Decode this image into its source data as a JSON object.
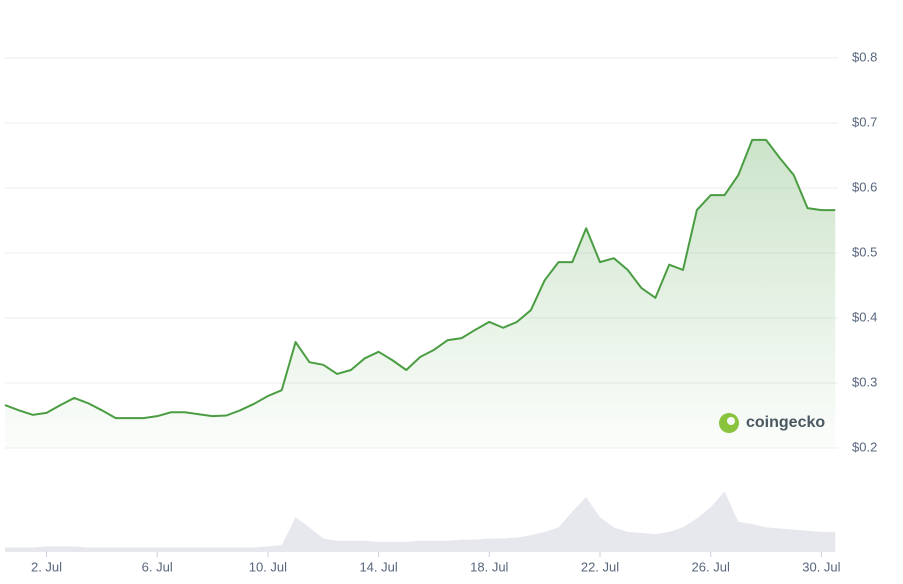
{
  "chart_data": {
    "type": "line",
    "watermark": "coingecko",
    "x": [
      0.5,
      1,
      1.5,
      2,
      2.5,
      3,
      3.5,
      4,
      4.5,
      5,
      5.5,
      6,
      6.5,
      7,
      7.5,
      8,
      8.5,
      9,
      9.5,
      10,
      10.5,
      11,
      11.5,
      12,
      12.5,
      13,
      13.5,
      14,
      14.5,
      15,
      15.5,
      16,
      16.5,
      17,
      17.5,
      18,
      18.5,
      19,
      19.5,
      20,
      20.5,
      21,
      21.5,
      22,
      22.5,
      23,
      23.5,
      24,
      24.5,
      25,
      25.5,
      26,
      26.5,
      27,
      27.5,
      28,
      28.5,
      29,
      29.5,
      30,
      30.5
    ],
    "values": [
      0.266,
      0.258,
      0.251,
      0.254,
      0.266,
      0.277,
      0.269,
      0.258,
      0.246,
      0.246,
      0.246,
      0.249,
      0.255,
      0.255,
      0.252,
      0.249,
      0.25,
      0.258,
      0.268,
      0.28,
      0.289,
      0.363,
      0.332,
      0.328,
      0.314,
      0.32,
      0.338,
      0.348,
      0.335,
      0.32,
      0.34,
      0.351,
      0.366,
      0.369,
      0.382,
      0.394,
      0.385,
      0.394,
      0.412,
      0.458,
      0.486,
      0.486,
      0.538,
      0.486,
      0.492,
      0.474,
      0.446,
      0.431,
      0.482,
      0.474,
      0.566,
      0.589,
      0.589,
      0.62,
      0.674,
      0.674,
      0.646,
      0.62,
      0.569,
      0.566,
      0.566
    ],
    "color": "#4a9d42",
    "volume_values": [
      0.04,
      0.04,
      0.04,
      0.05,
      0.05,
      0.05,
      0.04,
      0.04,
      0.04,
      0.04,
      0.04,
      0.04,
      0.04,
      0.04,
      0.04,
      0.04,
      0.04,
      0.04,
      0.04,
      0.05,
      0.06,
      0.31,
      0.22,
      0.12,
      0.1,
      0.1,
      0.1,
      0.09,
      0.09,
      0.09,
      0.1,
      0.1,
      0.1,
      0.11,
      0.11,
      0.12,
      0.12,
      0.13,
      0.15,
      0.18,
      0.22,
      0.36,
      0.49,
      0.31,
      0.22,
      0.18,
      0.17,
      0.16,
      0.18,
      0.22,
      0.3,
      0.4,
      0.54,
      0.27,
      0.25,
      0.22,
      0.21,
      0.2,
      0.19,
      0.18,
      0.18
    ],
    "volume_color": "#e7e8ee",
    "xlim": [
      0.5,
      30.6
    ],
    "xticks": [
      {
        "value": 2,
        "label": "2. Jul"
      },
      {
        "value": 6,
        "label": "6. Jul"
      },
      {
        "value": 10,
        "label": "10. Jul"
      },
      {
        "value": 14,
        "label": "14. Jul"
      },
      {
        "value": 18,
        "label": "18. Jul"
      },
      {
        "value": 22,
        "label": "22. Jul"
      },
      {
        "value": 26,
        "label": "26. Jul"
      },
      {
        "value": 30,
        "label": "30. Jul"
      }
    ],
    "ylim": [
      0.2,
      0.8
    ],
    "yticks": [
      {
        "value": 0.2,
        "label": "$0.2"
      },
      {
        "value": 0.3,
        "label": "$0.3"
      },
      {
        "value": 0.4,
        "label": "$0.4"
      },
      {
        "value": 0.5,
        "label": "$0.5"
      },
      {
        "value": 0.6,
        "label": "$0.6"
      },
      {
        "value": 0.7,
        "label": "$0.7"
      },
      {
        "value": 0.8,
        "label": "$0.8"
      }
    ],
    "y2lim": [
      0,
      1
    ],
    "grid": true
  }
}
